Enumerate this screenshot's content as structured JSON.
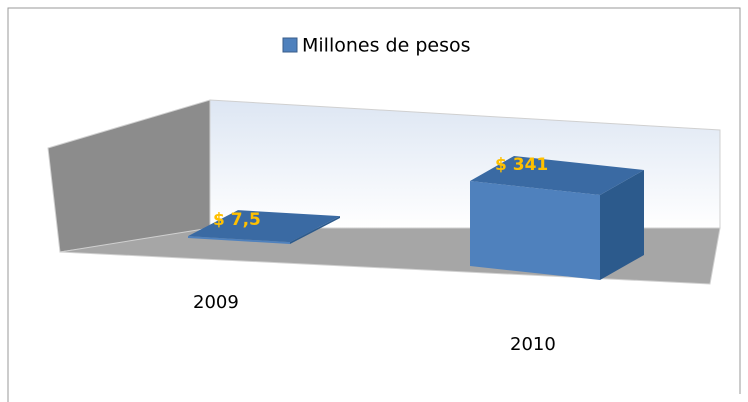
{
  "chart_data": {
    "type": "bar3d",
    "categories": [
      "2009",
      "2010"
    ],
    "series": [
      {
        "name": "Millones de pesos",
        "color": "#4f81bd",
        "values": [
          7.5,
          341
        ],
        "value_labels": [
          "$ 7,5",
          "$ 341"
        ]
      }
    ]
  }
}
